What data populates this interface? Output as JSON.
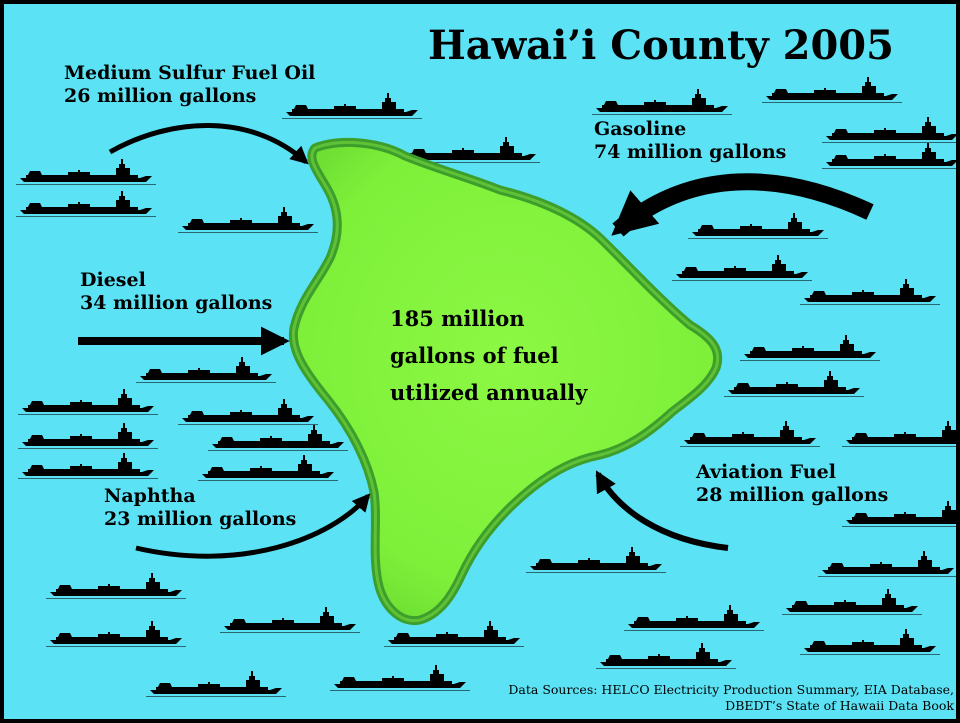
{
  "title": "Hawai’i County 2005",
  "center_text": {
    "line1": "185 million",
    "line2": "gallons of fuel",
    "line3": "utilized annually"
  },
  "imports": [
    {
      "name": "Medium Sulfur Fuel Oil",
      "amount": "26 million gallons"
    },
    {
      "name": "Gasoline",
      "amount": "74 million gallons"
    },
    {
      "name": "Diesel",
      "amount": "34 million gallons"
    },
    {
      "name": "Aviation Fuel",
      "amount": "28 million gallons"
    },
    {
      "name": "Naphtha",
      "amount": "23 million gallons"
    }
  ],
  "source": {
    "line1": "Data Sources: HELCO Electricity Production Summary, EIA Database,",
    "line2": "DBEDT’s State of Hawaii Data Book"
  },
  "colors": {
    "ocean": "#5BE3F5",
    "island": "#82F53D",
    "island_edge": "#3E9E2C",
    "ship": "#000000",
    "arrow": "#000000"
  },
  "icons": {
    "ship": "tanker-ship-icon",
    "island": "big-island-icon"
  }
}
